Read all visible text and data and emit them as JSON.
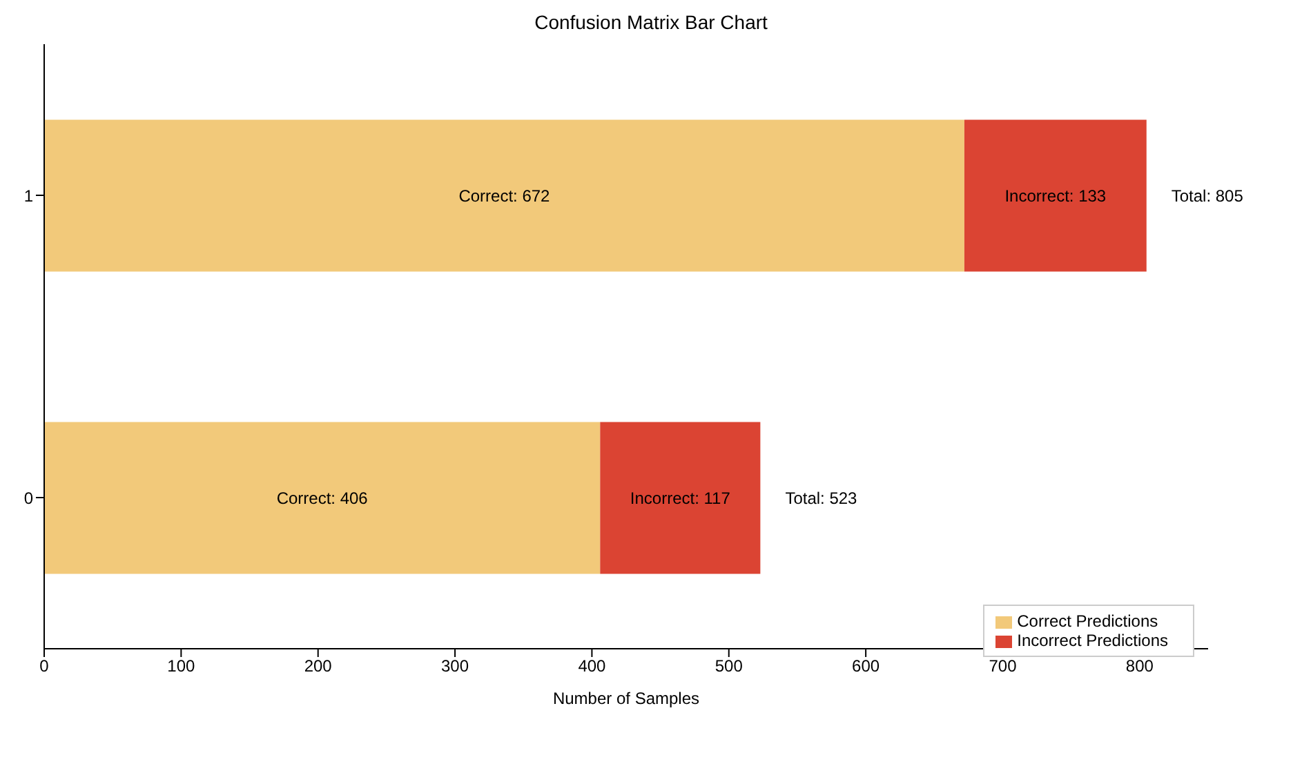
{
  "chart_data": {
    "type": "bar",
    "orientation": "horizontal",
    "stacked": true,
    "title": "Confusion Matrix Bar Chart",
    "xlabel": "Number of Samples",
    "categories": [
      "1",
      "0"
    ],
    "series": [
      {
        "name": "Correct Predictions",
        "color": "#f2c97a",
        "values": [
          672,
          406
        ],
        "value_labels": [
          "Correct: 672",
          "Correct: 406"
        ]
      },
      {
        "name": "Incorrect Predictions",
        "color": "#db4433",
        "values": [
          133,
          117
        ],
        "value_labels": [
          "Incorrect: 133",
          "Incorrect: 117"
        ]
      }
    ],
    "totals": [
      "Total: 805",
      "Total: 523"
    ],
    "xlim": [
      0,
      850
    ],
    "xticks": [
      0,
      100,
      200,
      300,
      400,
      500,
      600,
      700,
      800
    ],
    "grid": false,
    "legend": "bottom right"
  }
}
